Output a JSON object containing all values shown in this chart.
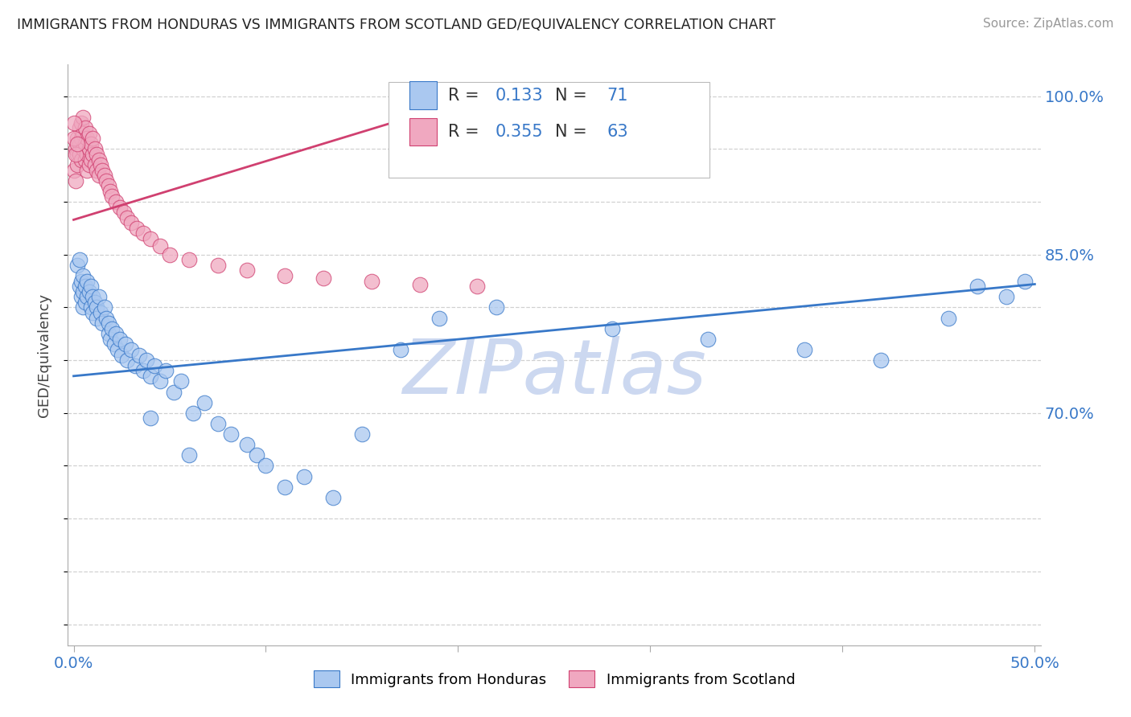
{
  "title": "IMMIGRANTS FROM HONDURAS VS IMMIGRANTS FROM SCOTLAND GED/EQUIVALENCY CORRELATION CHART",
  "source": "Source: ZipAtlas.com",
  "ylabel": "GED/Equivalency",
  "R_honduras": 0.133,
  "N_honduras": 71,
  "R_scotland": 0.355,
  "N_scotland": 63,
  "color_honduras": "#aac8f0",
  "color_scotland": "#f0a8c0",
  "color_trend_honduras": "#3878c8",
  "color_trend_scotland": "#d04070",
  "watermark": "ZIPatlas",
  "watermark_color": "#ccd8f0",
  "legend_label_honduras": "Immigrants from Honduras",
  "legend_label_scotland": "Immigrants from Scotland",
  "trend_honduras_x0": 0.0,
  "trend_honduras_y0": 0.735,
  "trend_honduras_x1": 0.5,
  "trend_honduras_y1": 0.822,
  "trend_scotland_x0": 0.0,
  "trend_scotland_y0": 0.883,
  "trend_scotland_x1": 0.22,
  "trend_scotland_y1": 1.005,
  "xlim_min": -0.003,
  "xlim_max": 0.503,
  "ylim_min": 0.48,
  "ylim_max": 1.03,
  "ytick_vals": [
    0.5,
    0.55,
    0.6,
    0.65,
    0.7,
    0.75,
    0.8,
    0.85,
    0.9,
    0.95,
    1.0
  ],
  "ytick_labels": [
    "",
    "",
    "",
    "",
    "70.0%",
    "",
    "",
    "85.0%",
    "",
    "",
    "100.0%"
  ],
  "xtick_vals": [
    0.0,
    0.1,
    0.2,
    0.3,
    0.4,
    0.5
  ],
  "xtick_labels": [
    "0.0%",
    "",
    "",
    "",
    "",
    "50.0%"
  ],
  "grid_color": "#cccccc",
  "grid_linestyle": "--",
  "spine_color": "#aaaaaa",
  "honduras_scatter_x": [
    0.002,
    0.003,
    0.003,
    0.004,
    0.004,
    0.005,
    0.005,
    0.005,
    0.006,
    0.006,
    0.007,
    0.007,
    0.008,
    0.009,
    0.009,
    0.01,
    0.01,
    0.011,
    0.012,
    0.012,
    0.013,
    0.014,
    0.015,
    0.016,
    0.017,
    0.018,
    0.018,
    0.019,
    0.02,
    0.021,
    0.022,
    0.023,
    0.024,
    0.025,
    0.027,
    0.028,
    0.03,
    0.032,
    0.034,
    0.036,
    0.038,
    0.04,
    0.042,
    0.045,
    0.048,
    0.052,
    0.056,
    0.062,
    0.068,
    0.075,
    0.082,
    0.09,
    0.095,
    0.1,
    0.11,
    0.12,
    0.135,
    0.15,
    0.17,
    0.19,
    0.22,
    0.28,
    0.33,
    0.38,
    0.42,
    0.455,
    0.47,
    0.485,
    0.495,
    0.04,
    0.06
  ],
  "honduras_scatter_y": [
    0.84,
    0.82,
    0.845,
    0.825,
    0.81,
    0.83,
    0.815,
    0.8,
    0.82,
    0.805,
    0.825,
    0.81,
    0.815,
    0.8,
    0.82,
    0.81,
    0.795,
    0.805,
    0.8,
    0.79,
    0.81,
    0.795,
    0.785,
    0.8,
    0.79,
    0.775,
    0.785,
    0.77,
    0.78,
    0.765,
    0.775,
    0.76,
    0.77,
    0.755,
    0.765,
    0.75,
    0.76,
    0.745,
    0.755,
    0.74,
    0.75,
    0.735,
    0.745,
    0.73,
    0.74,
    0.72,
    0.73,
    0.7,
    0.71,
    0.69,
    0.68,
    0.67,
    0.66,
    0.65,
    0.63,
    0.64,
    0.62,
    0.68,
    0.76,
    0.79,
    0.8,
    0.78,
    0.77,
    0.76,
    0.75,
    0.79,
    0.82,
    0.81,
    0.825,
    0.695,
    0.66
  ],
  "scotland_scatter_x": [
    0.0,
    0.001,
    0.001,
    0.002,
    0.002,
    0.002,
    0.003,
    0.003,
    0.003,
    0.004,
    0.004,
    0.004,
    0.005,
    0.005,
    0.005,
    0.006,
    0.006,
    0.006,
    0.007,
    0.007,
    0.007,
    0.008,
    0.008,
    0.008,
    0.009,
    0.009,
    0.01,
    0.01,
    0.011,
    0.011,
    0.012,
    0.012,
    0.013,
    0.013,
    0.014,
    0.015,
    0.016,
    0.017,
    0.018,
    0.019,
    0.02,
    0.022,
    0.024,
    0.026,
    0.028,
    0.03,
    0.033,
    0.036,
    0.04,
    0.045,
    0.05,
    0.06,
    0.075,
    0.09,
    0.11,
    0.13,
    0.155,
    0.18,
    0.21,
    0.0,
    0.0,
    0.001,
    0.002
  ],
  "scotland_scatter_y": [
    0.93,
    0.95,
    0.92,
    0.945,
    0.96,
    0.935,
    0.955,
    0.97,
    0.945,
    0.975,
    0.96,
    0.94,
    0.98,
    0.965,
    0.95,
    0.97,
    0.955,
    0.94,
    0.96,
    0.945,
    0.93,
    0.965,
    0.95,
    0.935,
    0.955,
    0.94,
    0.96,
    0.945,
    0.95,
    0.935,
    0.945,
    0.93,
    0.94,
    0.925,
    0.935,
    0.93,
    0.925,
    0.92,
    0.915,
    0.91,
    0.905,
    0.9,
    0.895,
    0.89,
    0.885,
    0.88,
    0.875,
    0.87,
    0.865,
    0.858,
    0.85,
    0.845,
    0.84,
    0.835,
    0.83,
    0.828,
    0.825,
    0.822,
    0.82,
    0.96,
    0.975,
    0.945,
    0.955
  ]
}
